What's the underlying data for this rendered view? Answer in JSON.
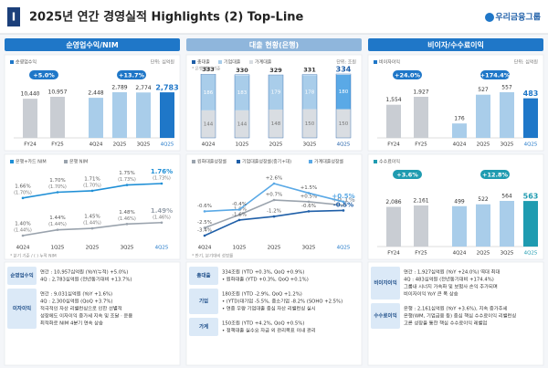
{
  "header": {
    "badge": "I",
    "title": "2025년 연간 경영실적 Highlights  (2) Top-Line",
    "logo": "우리금융그룹"
  },
  "panels": [
    {
      "title": "순영업수익/NIM",
      "top": {
        "type": "bar",
        "legend": "순영업수익",
        "unit": "단위: 십억원",
        "color": "#c9cdd3",
        "quarter_color": "#a9cdea",
        "highlight_color": "#1f77c8",
        "annual": {
          "categories": [
            "FY24",
            "FY25"
          ],
          "values": [
            10440,
            10957
          ],
          "value_labels": [
            "10,440",
            "10,957"
          ],
          "growth": "+5.0%"
        },
        "quarterly": {
          "categories": [
            "4Q24",
            "2Q25",
            "3Q25",
            "4Q25"
          ],
          "values": [
            2448,
            2789,
            2774,
            2783
          ],
          "value_labels": [
            "2,448",
            "2,789",
            "2,774",
            "2,783"
          ],
          "growth": "+13.7%"
        }
      },
      "bottom": {
        "type": "line",
        "categories": [
          "4Q24",
          "1Q25",
          "2Q25",
          "3Q25",
          "4Q25"
        ],
        "series": [
          {
            "name": "은행+카드 NIM",
            "color": "#1f8fd6",
            "values": [
              1.66,
              1.7,
              1.71,
              1.75,
              1.76
            ],
            "value_labels": [
              "1.66%",
              "1.70%",
              "1.71%",
              "1.75%",
              "1.76%"
            ],
            "notes": [
              "(1.70%)",
              "(1.70%)",
              "(1.70%)",
              "(1.73%)",
              "(1.73%)"
            ]
          },
          {
            "name": "은행 NIM",
            "color": "#9aa3ad",
            "values": [
              1.4,
              1.44,
              1.45,
              1.48,
              1.49
            ],
            "value_labels": [
              "1.40%",
              "1.44%",
              "1.45%",
              "1.48%",
              "1.49%"
            ],
            "notes": [
              "(1.44%)",
              "(1.44%)",
              "(1.44%)",
              "(1.46%)",
              "(1.46%)"
            ]
          }
        ],
        "footnote": "* 분기 기준 / ( ) 누적 NIM"
      },
      "notes": [
        {
          "label": "순영업수익",
          "lines": [
            "연간 : 10,957십억원 (YoY(누적) +5.0%)",
            "4Q : 2,783십억원 (전년동기대비 +13.7%)"
          ]
        },
        {
          "label": "이자이익",
          "lines": [
            "연간 : 9,031십억원 (YoY +1.6%)",
            "4Q : 2,300십억원 (QoQ +3.7%)",
            "적극적인 자산 리밸런싱으로 인한 선별적",
            "성장에도 이자이익 증가세 지속 및 조달 · 운용",
            "최적화로 NIM 4분기 연속 상승"
          ]
        }
      ]
    },
    {
      "title": "대출 현황(은행)",
      "top": {
        "type": "stacked_bar",
        "unit": "단위: 조원",
        "categories": [
          "4Q24",
          "1Q25",
          "2Q25",
          "3Q25",
          "4Q25"
        ],
        "total": {
          "name": "총대출",
          "color": "#1f5fa8",
          "values": [
            333,
            330,
            329,
            331,
            334
          ]
        },
        "series": [
          {
            "name": "기업대출",
            "color": "#a9cdea",
            "values": [
              186,
              183,
              179,
              178,
              180
            ]
          },
          {
            "name": "가계대출",
            "color": "#d9dde2",
            "values": [
              144,
              144,
              148,
              150,
              150
            ]
          }
        ],
        "footnote": "* 은행 별도 기준"
      },
      "bottom": {
        "type": "line",
        "categories": [
          "4Q24",
          "1Q25",
          "2Q25",
          "3Q25",
          "4Q25"
        ],
        "series": [
          {
            "name": "원화대출성장률",
            "color": "#9aa3ad",
            "values": [
              -2.5,
              -1.0,
              0.7,
              0.5,
              0.1
            ],
            "value_labels": [
              "-2.5%",
              "-1.0%",
              "+0.7%",
              "+0.5%",
              "+0.1%"
            ]
          },
          {
            "name": "기업대출성장률(중기+대)",
            "color": "#1f5fa8",
            "values": [
              -3.4,
              -1.6,
              -1.2,
              -0.6,
              -0.5
            ],
            "value_labels": [
              "-3.4%",
              "-1.6%",
              "-1.2%",
              "-0.6%",
              "-0.5%"
            ]
          },
          {
            "name": "가계대출성장률",
            "color": "#5aa9e6",
            "values": [
              -0.6,
              -0.4,
              2.6,
              1.5,
              0.5
            ],
            "value_labels": [
              "-0.6%",
              "-0.4%",
              "+2.6%",
              "+1.5%",
              "+0.5%"
            ]
          }
        ],
        "footnote": "* 반기, 분기대비 성장률"
      },
      "notes": [
        {
          "label": "총대출",
          "lines": [
            "334조원 (YTD +0.3%, QoQ +0.9%)",
            "• 원화대출 (YTD +0.3%, QoQ +0.1%)"
          ]
        },
        {
          "label": "기업",
          "lines": [
            "180조원 (YTD -2.9%, QoQ +1.2%)",
            "• (YTD)대기업 -5.5%, 중소기업 -8.2% (SOHO +2.5%)",
            "• 연중 우량 기업대출 중심 자산 리밸런싱 실시"
          ]
        },
        {
          "label": "가계",
          "lines": [
            "150조원 (YTD +4.2%, QoQ +0.5%)",
            "• 정책대출 실수요 자금 외 관리목표 이내 관리"
          ]
        }
      ]
    },
    {
      "title": "비이자/수수료이익",
      "top": {
        "type": "bar",
        "legend": "비이자이익",
        "unit": "단위: 십억원",
        "color": "#c9cdd3",
        "quarter_color": "#a9cdea",
        "highlight_color": "#1f77c8",
        "annual": {
          "categories": [
            "FY24",
            "FY25"
          ],
          "values": [
            1554,
            1927
          ],
          "value_labels": [
            "1,554",
            "1,927"
          ],
          "growth": "+24.0%"
        },
        "quarterly": {
          "categories": [
            "4Q24",
            "2Q25",
            "3Q25",
            "4Q25"
          ],
          "values": [
            176,
            527,
            557,
            483
          ],
          "growth": "+174.4%"
        }
      },
      "bottom": {
        "type": "bar",
        "legend": "수수료이익",
        "color": "#c9cdd3",
        "quarter_color": "#a9cdea",
        "highlight_color": "#1f9bb0",
        "annual": {
          "categories": [
            "FY24",
            "FY25"
          ],
          "values": [
            2086,
            2161
          ],
          "value_labels": [
            "2,086",
            "2,161"
          ],
          "growth": "+3.6%"
        },
        "quarterly": {
          "categories": [
            "4Q24",
            "2Q25",
            "3Q25",
            "4Q25"
          ],
          "values": [
            499,
            522,
            564,
            563
          ],
          "growth": "+12.8%"
        }
      },
      "notes": [
        {
          "label": "비이자이익",
          "lines": [
            "연간 : 1,927십억원 (YoY +24.0%) 역대 최대",
            "4Q : 483십억원 (전년동기대비 +174.4%)",
            "그룹내 시너지 가속화 및 보험사 손익 추가되며",
            "비이자이익 YoY 큰 폭 상승"
          ]
        },
        {
          "label": "수수료이익",
          "lines": [
            "은행 : 2,161십억원 (YoY +3.6%), 지속 증가추세",
            "은행(WM, 기업금융 등) 중심 핵심 수수료이익 리밸런싱",
            "고른 성장을 통한 핵심 수수료이익 레벨업"
          ]
        }
      ]
    }
  ]
}
